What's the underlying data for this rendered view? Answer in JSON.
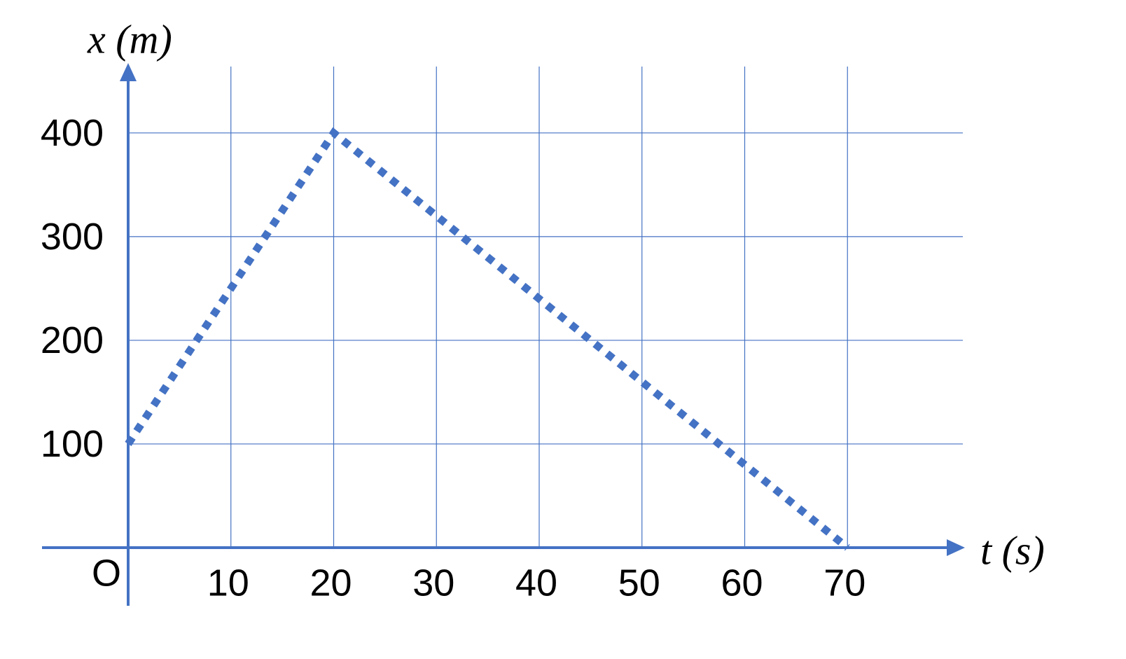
{
  "chart_data": {
    "type": "line",
    "x_label": "t (s)",
    "y_label": "x (m)",
    "origin_label": "O",
    "x": [
      0,
      20,
      70
    ],
    "values": [
      100,
      400,
      0
    ],
    "color": "#4472c4",
    "xlim": [
      0,
      80
    ],
    "ylim": [
      0,
      460
    ],
    "xticks": [
      10,
      20,
      30,
      40,
      50,
      60,
      70
    ],
    "yticks": [
      100,
      200,
      300,
      400
    ],
    "grid": true
  }
}
